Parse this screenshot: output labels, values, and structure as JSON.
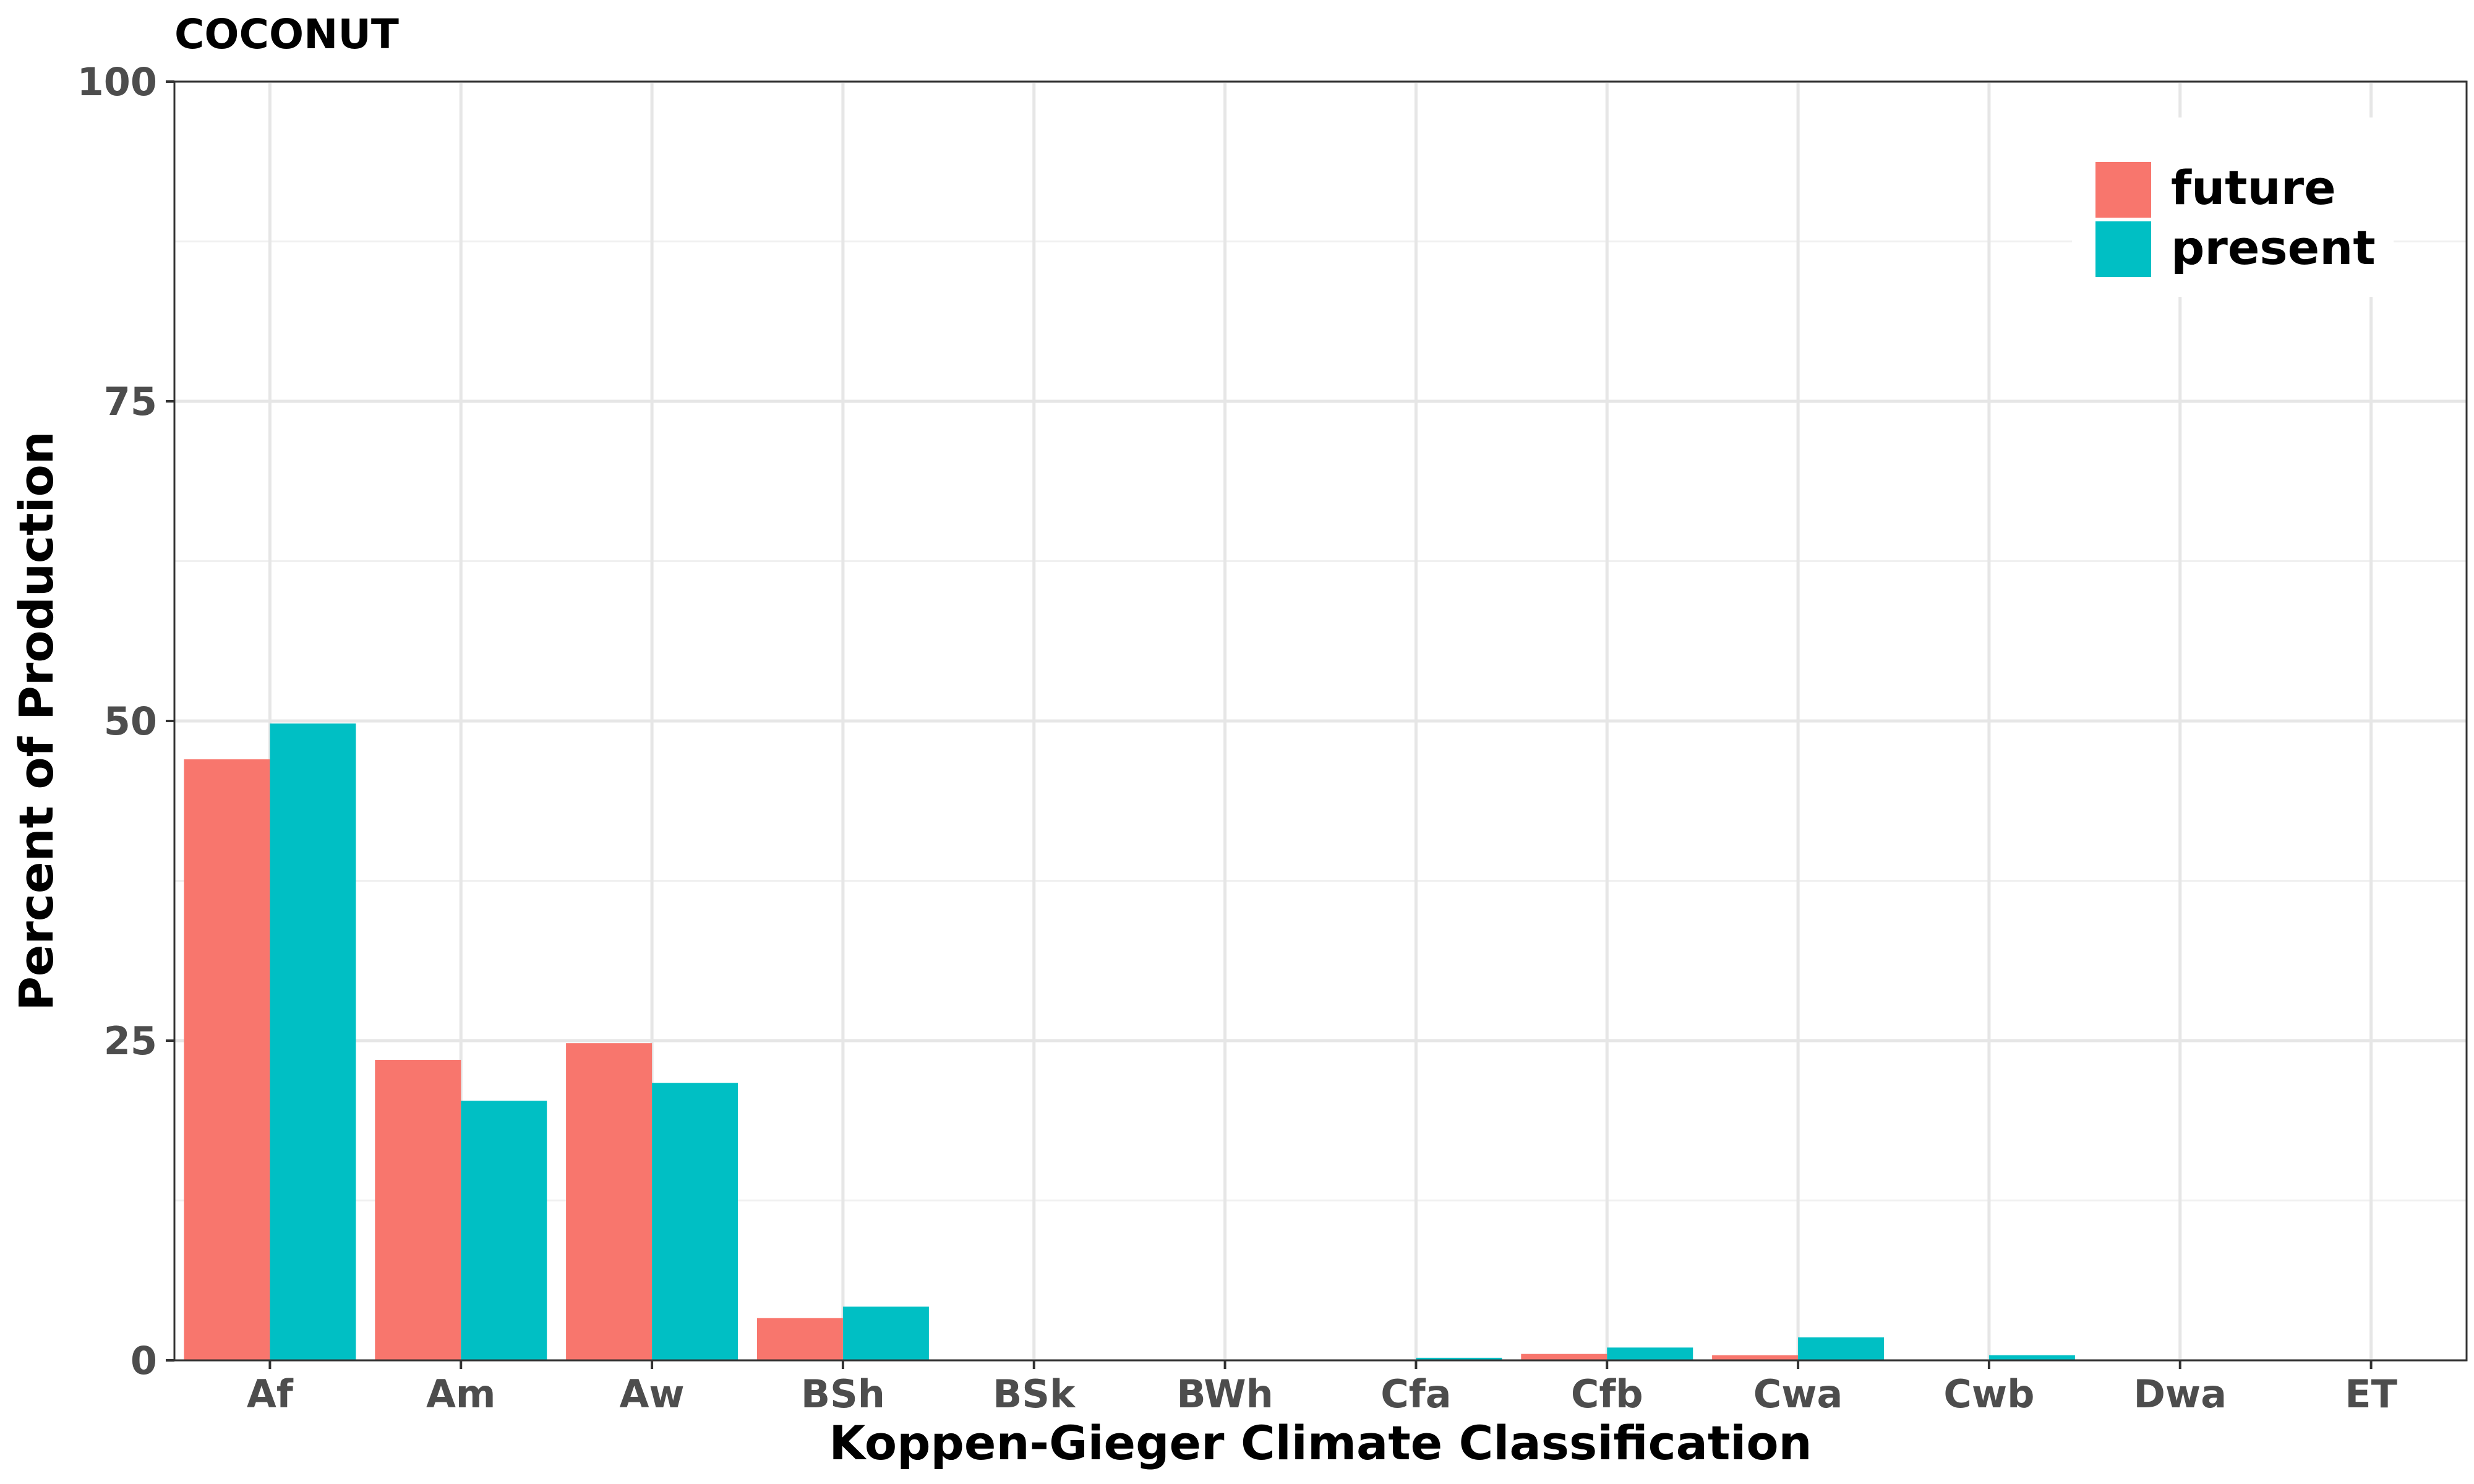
{
  "chart_data": {
    "type": "bar",
    "title": "COCONUT",
    "xlabel": "Koppen-Gieger Climate Classification",
    "ylabel": "Percent of Production",
    "categories": [
      "Af",
      "Am",
      "Aw",
      "BSh",
      "BSk",
      "BWh",
      "Cfa",
      "Cfb",
      "Cwa",
      "Cwb",
      "Dwa",
      "ET"
    ],
    "series": [
      {
        "name": "future",
        "color": "#F8766D",
        "values": [
          47.0,
          23.5,
          24.8,
          3.3,
          0,
          0,
          0.05,
          0.5,
          0.4,
          0.05,
          0,
          0
        ]
      },
      {
        "name": "present",
        "color": "#00BFC4",
        "values": [
          49.8,
          20.3,
          21.7,
          4.2,
          0,
          0,
          0.2,
          1.0,
          1.8,
          0.4,
          0,
          0
        ]
      }
    ],
    "ylim": [
      0,
      100
    ],
    "yticks": [
      "0",
      "25",
      "50",
      "75",
      "100"
    ],
    "grid": true,
    "legend_position": "top-right"
  }
}
